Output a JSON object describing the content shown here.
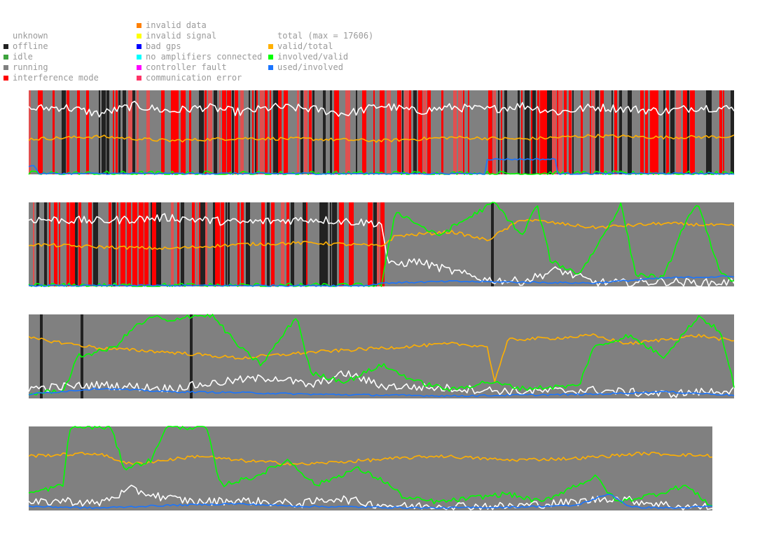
{
  "legend": {
    "status": [
      {
        "label": "unknown",
        "color": "#ffffff"
      },
      {
        "label": "offline",
        "color": "#222222"
      },
      {
        "label": "idle",
        "color": "#3da33d"
      },
      {
        "label": "running",
        "color": "#808080"
      },
      {
        "label": "interference mode",
        "color": "#ff0000"
      }
    ],
    "errors": [
      {
        "label": "invalid data",
        "color": "#ff7f00"
      },
      {
        "label": "invalid signal",
        "color": "#ffff00"
      },
      {
        "label": "bad gps",
        "color": "#0000ff"
      },
      {
        "label": "no amplifiers connected",
        "color": "#00ffff"
      },
      {
        "label": "controller fault",
        "color": "#ff00ff"
      },
      {
        "label": "communication error",
        "color": "#ff3366"
      }
    ],
    "ratios": [
      {
        "label": "total (max = 17606)",
        "color": "#ffffff"
      },
      {
        "label": "valid/total",
        "color": "#ffb000"
      },
      {
        "label": "involved/valid",
        "color": "#00ff00"
      },
      {
        "label": "used/involved",
        "color": "#1a75ff"
      }
    ]
  },
  "colors": {
    "running": "#808080",
    "offline": "#222222",
    "interference": "#ff0000",
    "total": "#ffffff",
    "valid_total": "#ffb000",
    "involved_valid": "#00ff00",
    "used_involved": "#1a75ff",
    "interference_light": "#e05050"
  },
  "chart_data": [
    {
      "type": "line",
      "panel": 1,
      "ylim": [
        0,
        1
      ],
      "background_status": "interference mode and offline dense bands over running",
      "series": [
        {
          "key": "total",
          "anchors": [
            [
              0,
              0.78
            ],
            [
              0.05,
              0.8
            ],
            [
              0.1,
              0.72
            ],
            [
              0.15,
              0.82
            ],
            [
              0.2,
              0.75
            ],
            [
              0.25,
              0.8
            ],
            [
              0.3,
              0.74
            ],
            [
              0.35,
              0.8
            ],
            [
              0.4,
              0.78
            ],
            [
              0.45,
              0.72
            ],
            [
              0.5,
              0.82
            ],
            [
              0.55,
              0.75
            ],
            [
              0.6,
              0.8
            ],
            [
              0.65,
              0.77
            ],
            [
              0.7,
              0.82
            ],
            [
              0.75,
              0.74
            ],
            [
              0.8,
              0.8
            ],
            [
              0.85,
              0.78
            ],
            [
              0.9,
              0.75
            ],
            [
              0.95,
              0.8
            ],
            [
              1,
              0.78
            ]
          ]
        },
        {
          "key": "valid_total",
          "anchors": [
            [
              0,
              0.42
            ],
            [
              0.1,
              0.45
            ],
            [
              0.2,
              0.4
            ],
            [
              0.3,
              0.43
            ],
            [
              0.4,
              0.42
            ],
            [
              0.5,
              0.4
            ],
            [
              0.6,
              0.44
            ],
            [
              0.7,
              0.42
            ],
            [
              0.8,
              0.46
            ],
            [
              0.9,
              0.44
            ],
            [
              1,
              0.45
            ]
          ]
        },
        {
          "key": "involved_valid",
          "anchors": [
            [
              0,
              0.01
            ],
            [
              1,
              0.01
            ]
          ]
        },
        {
          "key": "used_involved",
          "anchors": [
            [
              0,
              0.1
            ],
            [
              0.01,
              0.1
            ],
            [
              0.012,
              0.01
            ],
            [
              0.648,
              0.01
            ],
            [
              0.65,
              0.18
            ],
            [
              0.748,
              0.18
            ],
            [
              0.75,
              0.01
            ],
            [
              1,
              0.01
            ]
          ]
        }
      ]
    },
    {
      "type": "line",
      "panel": 2,
      "ylim": [
        0,
        1
      ],
      "background_status": "interference mode until 0.505, running afterwards",
      "series": [
        {
          "key": "total",
          "anchors": [
            [
              0,
              0.8
            ],
            [
              0.1,
              0.78
            ],
            [
              0.2,
              0.82
            ],
            [
              0.3,
              0.76
            ],
            [
              0.4,
              0.8
            ],
            [
              0.5,
              0.75
            ],
            [
              0.51,
              0.25
            ],
            [
              0.55,
              0.3
            ],
            [
              0.6,
              0.18
            ],
            [
              0.65,
              0.08
            ],
            [
              0.7,
              0.06
            ],
            [
              0.75,
              0.2
            ],
            [
              0.8,
              0.05
            ],
            [
              0.85,
              0.04
            ],
            [
              0.9,
              0.06
            ],
            [
              0.95,
              0.04
            ],
            [
              1,
              0.05
            ]
          ]
        },
        {
          "key": "valid_total",
          "anchors": [
            [
              0,
              0.5
            ],
            [
              0.1,
              0.47
            ],
            [
              0.2,
              0.45
            ],
            [
              0.3,
              0.5
            ],
            [
              0.4,
              0.52
            ],
            [
              0.5,
              0.48
            ],
            [
              0.52,
              0.6
            ],
            [
              0.6,
              0.65
            ],
            [
              0.65,
              0.55
            ],
            [
              0.7,
              0.8
            ],
            [
              0.8,
              0.7
            ],
            [
              0.9,
              0.75
            ],
            [
              1,
              0.72
            ]
          ]
        },
        {
          "key": "involved_valid",
          "anchors": [
            [
              0,
              0.01
            ],
            [
              0.5,
              0.01
            ],
            [
              0.52,
              0.9
            ],
            [
              0.58,
              0.6
            ],
            [
              0.62,
              0.8
            ],
            [
              0.66,
              1
            ],
            [
              0.7,
              0.6
            ],
            [
              0.72,
              0.98
            ],
            [
              0.74,
              0.3
            ],
            [
              0.78,
              0.15
            ],
            [
              0.8,
              0.4
            ],
            [
              0.84,
              0.98
            ],
            [
              0.86,
              0.15
            ],
            [
              0.9,
              0.1
            ],
            [
              0.93,
              0.75
            ],
            [
              0.95,
              0.98
            ],
            [
              0.98,
              0.15
            ],
            [
              1,
              0.05
            ]
          ]
        },
        {
          "key": "used_involved",
          "anchors": [
            [
              0,
              0.01
            ],
            [
              0.48,
              0.01
            ],
            [
              0.5,
              0.04
            ],
            [
              0.6,
              0.06
            ],
            [
              0.7,
              0.05
            ],
            [
              0.8,
              0.04
            ],
            [
              0.9,
              0.1
            ],
            [
              1,
              0.12
            ]
          ]
        }
      ]
    },
    {
      "type": "line",
      "panel": 3,
      "ylim": [
        0,
        1
      ],
      "background_status": "running with a few offline intervals",
      "series": [
        {
          "key": "total",
          "anchors": [
            [
              0,
              0.12
            ],
            [
              0.1,
              0.16
            ],
            [
              0.2,
              0.12
            ],
            [
              0.3,
              0.22
            ],
            [
              0.35,
              0.25
            ],
            [
              0.4,
              0.15
            ],
            [
              0.45,
              0.3
            ],
            [
              0.5,
              0.15
            ],
            [
              0.6,
              0.12
            ],
            [
              0.7,
              0.08
            ],
            [
              0.8,
              0.1
            ],
            [
              0.9,
              0.05
            ],
            [
              1,
              0.1
            ]
          ]
        },
        {
          "key": "valid_total",
          "anchors": [
            [
              0,
              0.72
            ],
            [
              0.1,
              0.6
            ],
            [
              0.2,
              0.55
            ],
            [
              0.3,
              0.48
            ],
            [
              0.4,
              0.55
            ],
            [
              0.5,
              0.6
            ],
            [
              0.6,
              0.65
            ],
            [
              0.65,
              0.62
            ],
            [
              0.66,
              0.2
            ],
            [
              0.68,
              0.7
            ],
            [
              0.75,
              0.72
            ],
            [
              0.8,
              0.75
            ],
            [
              0.85,
              0.65
            ],
            [
              0.9,
              0.7
            ],
            [
              0.95,
              0.75
            ],
            [
              1,
              0.68
            ]
          ]
        },
        {
          "key": "involved_valid",
          "anchors": [
            [
              0,
              0.05
            ],
            [
              0.05,
              0.1
            ],
            [
              0.07,
              0.5
            ],
            [
              0.12,
              0.6
            ],
            [
              0.15,
              0.85
            ],
            [
              0.18,
              0.98
            ],
            [
              0.2,
              0.9
            ],
            [
              0.22,
              0.98
            ],
            [
              0.26,
              0.99
            ],
            [
              0.3,
              0.6
            ],
            [
              0.33,
              0.4
            ],
            [
              0.38,
              0.98
            ],
            [
              0.4,
              0.3
            ],
            [
              0.45,
              0.2
            ],
            [
              0.5,
              0.4
            ],
            [
              0.55,
              0.2
            ],
            [
              0.6,
              0.1
            ],
            [
              0.65,
              0.2
            ],
            [
              0.7,
              0.12
            ],
            [
              0.78,
              0.15
            ],
            [
              0.8,
              0.6
            ],
            [
              0.85,
              0.75
            ],
            [
              0.9,
              0.5
            ],
            [
              0.95,
              0.98
            ],
            [
              0.98,
              0.8
            ],
            [
              1,
              0.15
            ]
          ]
        },
        {
          "key": "used_involved",
          "anchors": [
            [
              0,
              0.05
            ],
            [
              0.1,
              0.12
            ],
            [
              0.2,
              0.08
            ],
            [
              0.3,
              0.07
            ],
            [
              0.4,
              0.05
            ],
            [
              0.5,
              0.04
            ],
            [
              0.6,
              0.03
            ],
            [
              0.7,
              0.04
            ],
            [
              0.8,
              0.05
            ],
            [
              0.9,
              0.08
            ],
            [
              1,
              0.04
            ]
          ]
        }
      ]
    },
    {
      "type": "line",
      "panel": 4,
      "ylim": [
        0,
        1
      ],
      "background_status": "running",
      "series": [
        {
          "key": "total",
          "anchors": [
            [
              0,
              0.08
            ],
            [
              0.05,
              0.12
            ],
            [
              0.1,
              0.08
            ],
            [
              0.15,
              0.25
            ],
            [
              0.2,
              0.15
            ],
            [
              0.25,
              0.1
            ],
            [
              0.3,
              0.12
            ],
            [
              0.35,
              0.1
            ],
            [
              0.4,
              0.08
            ],
            [
              0.45,
              0.15
            ],
            [
              0.5,
              0.08
            ],
            [
              0.55,
              0.05
            ],
            [
              0.6,
              0.06
            ],
            [
              0.7,
              0.05
            ],
            [
              0.8,
              0.1
            ],
            [
              0.85,
              0.15
            ],
            [
              0.9,
              0.1
            ],
            [
              0.95,
              0.05
            ],
            [
              1,
              0.04
            ]
          ]
        },
        {
          "key": "valid_total",
          "anchors": [
            [
              0,
              0.65
            ],
            [
              0.1,
              0.68
            ],
            [
              0.15,
              0.55
            ],
            [
              0.2,
              0.6
            ],
            [
              0.25,
              0.65
            ],
            [
              0.3,
              0.6
            ],
            [
              0.4,
              0.55
            ],
            [
              0.5,
              0.6
            ],
            [
              0.6,
              0.65
            ],
            [
              0.7,
              0.6
            ],
            [
              0.8,
              0.62
            ],
            [
              0.9,
              0.68
            ],
            [
              1,
              0.65
            ]
          ]
        },
        {
          "key": "involved_valid",
          "anchors": [
            [
              0,
              0.2
            ],
            [
              0.05,
              0.3
            ],
            [
              0.06,
              0.99
            ],
            [
              0.12,
              0.99
            ],
            [
              0.14,
              0.5
            ],
            [
              0.18,
              0.6
            ],
            [
              0.2,
              0.99
            ],
            [
              0.26,
              0.99
            ],
            [
              0.28,
              0.3
            ],
            [
              0.33,
              0.4
            ],
            [
              0.38,
              0.6
            ],
            [
              0.42,
              0.3
            ],
            [
              0.48,
              0.5
            ],
            [
              0.52,
              0.35
            ],
            [
              0.55,
              0.15
            ],
            [
              0.6,
              0.1
            ],
            [
              0.7,
              0.2
            ],
            [
              0.75,
              0.1
            ],
            [
              0.8,
              0.3
            ],
            [
              0.83,
              0.4
            ],
            [
              0.86,
              0.1
            ],
            [
              0.92,
              0.2
            ],
            [
              0.96,
              0.3
            ],
            [
              1,
              0.05
            ]
          ]
        },
        {
          "key": "used_involved",
          "anchors": [
            [
              0,
              0.05
            ],
            [
              0.1,
              0.03
            ],
            [
              0.2,
              0.06
            ],
            [
              0.3,
              0.08
            ],
            [
              0.4,
              0.05
            ],
            [
              0.5,
              0.04
            ],
            [
              0.6,
              0.03
            ],
            [
              0.7,
              0.04
            ],
            [
              0.8,
              0.06
            ],
            [
              0.85,
              0.2
            ],
            [
              0.88,
              0.04
            ],
            [
              0.95,
              0.03
            ],
            [
              1,
              0.05
            ]
          ]
        }
      ]
    }
  ]
}
